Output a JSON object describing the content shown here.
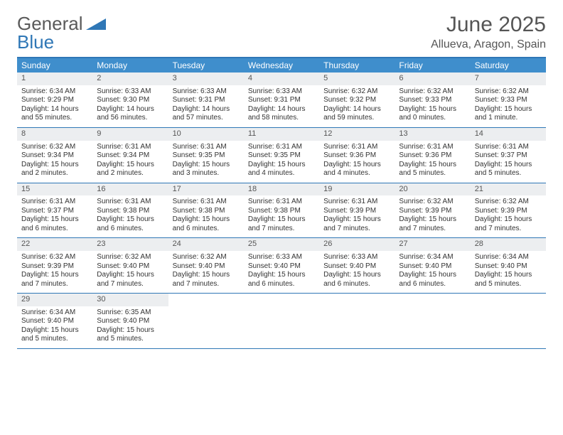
{
  "brand": {
    "part1": "General",
    "part2": "Blue"
  },
  "title": "June 2025",
  "location": "Allueva, Aragon, Spain",
  "colors": {
    "header_bg": "#3f8ecc",
    "border": "#2f77b6",
    "daynum_bg": "#eceef0",
    "title_text": "#555555",
    "body_text": "#333333",
    "page_bg": "#ffffff"
  },
  "fonts": {
    "title_size": 30,
    "location_size": 16,
    "head_size": 12,
    "day_size": 10
  },
  "day_headers": [
    "Sunday",
    "Monday",
    "Tuesday",
    "Wednesday",
    "Thursday",
    "Friday",
    "Saturday"
  ],
  "weeks": [
    [
      {
        "n": "1",
        "sr": "Sunrise: 6:34 AM",
        "ss": "Sunset: 9:29 PM",
        "d1": "Daylight: 14 hours",
        "d2": "and 55 minutes."
      },
      {
        "n": "2",
        "sr": "Sunrise: 6:33 AM",
        "ss": "Sunset: 9:30 PM",
        "d1": "Daylight: 14 hours",
        "d2": "and 56 minutes."
      },
      {
        "n": "3",
        "sr": "Sunrise: 6:33 AM",
        "ss": "Sunset: 9:31 PM",
        "d1": "Daylight: 14 hours",
        "d2": "and 57 minutes."
      },
      {
        "n": "4",
        "sr": "Sunrise: 6:33 AM",
        "ss": "Sunset: 9:31 PM",
        "d1": "Daylight: 14 hours",
        "d2": "and 58 minutes."
      },
      {
        "n": "5",
        "sr": "Sunrise: 6:32 AM",
        "ss": "Sunset: 9:32 PM",
        "d1": "Daylight: 14 hours",
        "d2": "and 59 minutes."
      },
      {
        "n": "6",
        "sr": "Sunrise: 6:32 AM",
        "ss": "Sunset: 9:33 PM",
        "d1": "Daylight: 15 hours",
        "d2": "and 0 minutes."
      },
      {
        "n": "7",
        "sr": "Sunrise: 6:32 AM",
        "ss": "Sunset: 9:33 PM",
        "d1": "Daylight: 15 hours",
        "d2": "and 1 minute."
      }
    ],
    [
      {
        "n": "8",
        "sr": "Sunrise: 6:32 AM",
        "ss": "Sunset: 9:34 PM",
        "d1": "Daylight: 15 hours",
        "d2": "and 2 minutes."
      },
      {
        "n": "9",
        "sr": "Sunrise: 6:31 AM",
        "ss": "Sunset: 9:34 PM",
        "d1": "Daylight: 15 hours",
        "d2": "and 2 minutes."
      },
      {
        "n": "10",
        "sr": "Sunrise: 6:31 AM",
        "ss": "Sunset: 9:35 PM",
        "d1": "Daylight: 15 hours",
        "d2": "and 3 minutes."
      },
      {
        "n": "11",
        "sr": "Sunrise: 6:31 AM",
        "ss": "Sunset: 9:35 PM",
        "d1": "Daylight: 15 hours",
        "d2": "and 4 minutes."
      },
      {
        "n": "12",
        "sr": "Sunrise: 6:31 AM",
        "ss": "Sunset: 9:36 PM",
        "d1": "Daylight: 15 hours",
        "d2": "and 4 minutes."
      },
      {
        "n": "13",
        "sr": "Sunrise: 6:31 AM",
        "ss": "Sunset: 9:36 PM",
        "d1": "Daylight: 15 hours",
        "d2": "and 5 minutes."
      },
      {
        "n": "14",
        "sr": "Sunrise: 6:31 AM",
        "ss": "Sunset: 9:37 PM",
        "d1": "Daylight: 15 hours",
        "d2": "and 5 minutes."
      }
    ],
    [
      {
        "n": "15",
        "sr": "Sunrise: 6:31 AM",
        "ss": "Sunset: 9:37 PM",
        "d1": "Daylight: 15 hours",
        "d2": "and 6 minutes."
      },
      {
        "n": "16",
        "sr": "Sunrise: 6:31 AM",
        "ss": "Sunset: 9:38 PM",
        "d1": "Daylight: 15 hours",
        "d2": "and 6 minutes."
      },
      {
        "n": "17",
        "sr": "Sunrise: 6:31 AM",
        "ss": "Sunset: 9:38 PM",
        "d1": "Daylight: 15 hours",
        "d2": "and 6 minutes."
      },
      {
        "n": "18",
        "sr": "Sunrise: 6:31 AM",
        "ss": "Sunset: 9:38 PM",
        "d1": "Daylight: 15 hours",
        "d2": "and 7 minutes."
      },
      {
        "n": "19",
        "sr": "Sunrise: 6:31 AM",
        "ss": "Sunset: 9:39 PM",
        "d1": "Daylight: 15 hours",
        "d2": "and 7 minutes."
      },
      {
        "n": "20",
        "sr": "Sunrise: 6:32 AM",
        "ss": "Sunset: 9:39 PM",
        "d1": "Daylight: 15 hours",
        "d2": "and 7 minutes."
      },
      {
        "n": "21",
        "sr": "Sunrise: 6:32 AM",
        "ss": "Sunset: 9:39 PM",
        "d1": "Daylight: 15 hours",
        "d2": "and 7 minutes."
      }
    ],
    [
      {
        "n": "22",
        "sr": "Sunrise: 6:32 AM",
        "ss": "Sunset: 9:39 PM",
        "d1": "Daylight: 15 hours",
        "d2": "and 7 minutes."
      },
      {
        "n": "23",
        "sr": "Sunrise: 6:32 AM",
        "ss": "Sunset: 9:40 PM",
        "d1": "Daylight: 15 hours",
        "d2": "and 7 minutes."
      },
      {
        "n": "24",
        "sr": "Sunrise: 6:32 AM",
        "ss": "Sunset: 9:40 PM",
        "d1": "Daylight: 15 hours",
        "d2": "and 7 minutes."
      },
      {
        "n": "25",
        "sr": "Sunrise: 6:33 AM",
        "ss": "Sunset: 9:40 PM",
        "d1": "Daylight: 15 hours",
        "d2": "and 6 minutes."
      },
      {
        "n": "26",
        "sr": "Sunrise: 6:33 AM",
        "ss": "Sunset: 9:40 PM",
        "d1": "Daylight: 15 hours",
        "d2": "and 6 minutes."
      },
      {
        "n": "27",
        "sr": "Sunrise: 6:34 AM",
        "ss": "Sunset: 9:40 PM",
        "d1": "Daylight: 15 hours",
        "d2": "and 6 minutes."
      },
      {
        "n": "28",
        "sr": "Sunrise: 6:34 AM",
        "ss": "Sunset: 9:40 PM",
        "d1": "Daylight: 15 hours",
        "d2": "and 5 minutes."
      }
    ],
    [
      {
        "n": "29",
        "sr": "Sunrise: 6:34 AM",
        "ss": "Sunset: 9:40 PM",
        "d1": "Daylight: 15 hours",
        "d2": "and 5 minutes."
      },
      {
        "n": "30",
        "sr": "Sunrise: 6:35 AM",
        "ss": "Sunset: 9:40 PM",
        "d1": "Daylight: 15 hours",
        "d2": "and 5 minutes."
      },
      {
        "empty": true
      },
      {
        "empty": true
      },
      {
        "empty": true
      },
      {
        "empty": true
      },
      {
        "empty": true
      }
    ]
  ]
}
